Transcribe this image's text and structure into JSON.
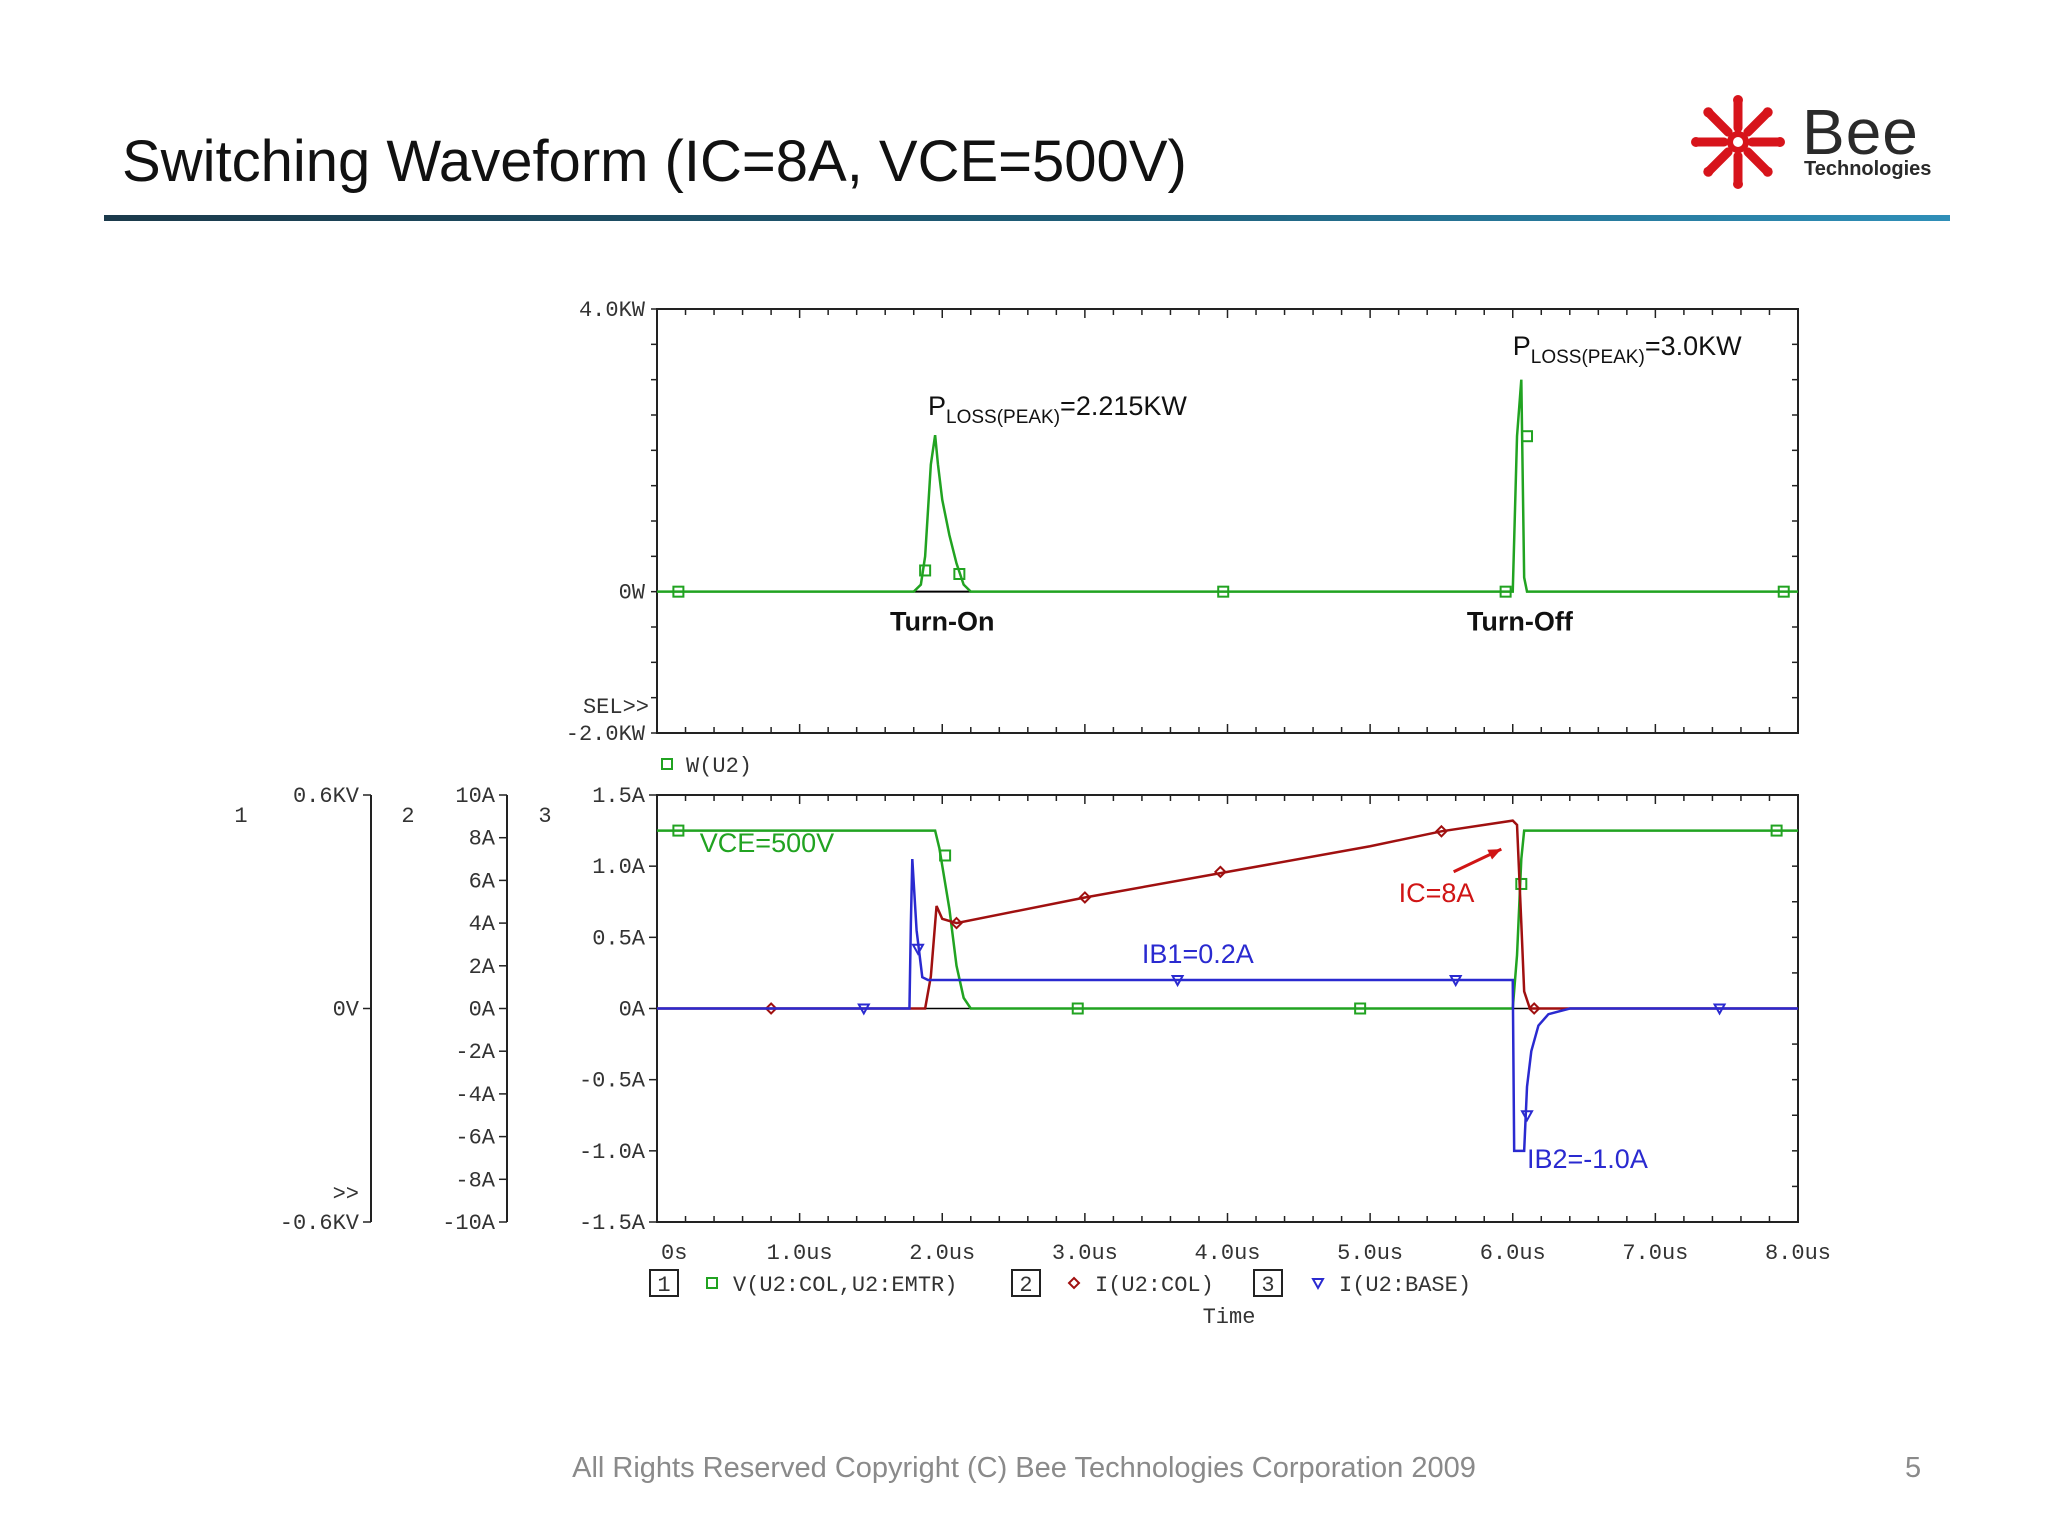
{
  "slide": {
    "title": "Switching Waveform (IC=8A, VCE=500V)",
    "footer": "All Rights Reserved Copyright (C) Bee Technologies Corporation 2009",
    "page_number": "5",
    "logo": {
      "word": "Bee",
      "sub": "Technologies",
      "colors": {
        "star": "#d7141b",
        "word": "#222222"
      }
    }
  },
  "chart_data": [
    {
      "type": "line",
      "title": "",
      "xlim": [
        0,
        8.0
      ],
      "ylim": [
        -2.0,
        4.0
      ],
      "yticks": [
        {
          "value": 4.0,
          "label": "4.0KW"
        },
        {
          "value": 0,
          "label": "0W"
        },
        {
          "value": -2.0,
          "label": "-2.0KW"
        }
      ],
      "sel_marker": "SEL>>",
      "legend": [
        {
          "marker": "square",
          "label": "W(U2)",
          "color": "#21a321"
        }
      ],
      "series": [
        {
          "name": "W(U2)",
          "color": "#21a321",
          "x": [
            0,
            1.8,
            1.85,
            1.88,
            1.92,
            1.95,
            1.97,
            2.0,
            2.05,
            2.1,
            2.15,
            2.2,
            6.0,
            6.03,
            6.06,
            6.08,
            6.1,
            8.0
          ],
          "y": [
            0,
            0,
            0.1,
            0.5,
            1.8,
            2.215,
            1.8,
            1.3,
            0.8,
            0.4,
            0.1,
            0,
            0,
            2.2,
            3.0,
            0.2,
            0,
            0
          ],
          "markers": [
            {
              "x": 0.15,
              "y": 0
            },
            {
              "x": 1.88,
              "y": 0.3
            },
            {
              "x": 2.12,
              "y": 0.25
            },
            {
              "x": 3.97,
              "y": 0
            },
            {
              "x": 5.95,
              "y": 0
            },
            {
              "x": 6.1,
              "y": 2.2
            },
            {
              "x": 7.9,
              "y": 0
            }
          ]
        }
      ],
      "annotations": [
        {
          "text": "PLOSS(PEAK)=2.215KW",
          "main": "P",
          "sub": "LOSS(PEAK)",
          "rest": "=2.215KW",
          "x": 1.9,
          "y": 2.5
        },
        {
          "text": "PLOSS(PEAK)=3.0KW",
          "main": "P",
          "sub": "LOSS(PEAK)",
          "rest": "=3.0KW",
          "x": 6.0,
          "y": 3.35
        },
        {
          "text": "Turn-On",
          "x": 2.0,
          "y": -0.55,
          "bold": true
        },
        {
          "text": "Turn-Off",
          "x": 6.05,
          "y": -0.55,
          "bold": true
        }
      ]
    },
    {
      "type": "line",
      "xlabel": "Time",
      "xlim": [
        0,
        8.0
      ],
      "xticks": [
        "0s",
        "1.0us",
        "2.0us",
        "3.0us",
        "4.0us",
        "5.0us",
        "6.0us",
        "7.0us",
        "8.0us"
      ],
      "axes": [
        {
          "id": "1",
          "ylim": [
            -0.6,
            0.6
          ],
          "ticks": [
            {
              "value": 0.6,
              "label": "0.6KV"
            },
            {
              "value": 0,
              "label": "0V"
            },
            {
              "value": -0.6,
              "label": "-0.6KV"
            }
          ],
          "extra": ">>"
        },
        {
          "id": "2",
          "ylim": [
            -10,
            10
          ],
          "ticks": [
            {
              "value": 10,
              "label": "10A"
            },
            {
              "value": 8,
              "label": "8A"
            },
            {
              "value": 6,
              "label": "6A"
            },
            {
              "value": 4,
              "label": "4A"
            },
            {
              "value": 2,
              "label": "2A"
            },
            {
              "value": 0,
              "label": "0A"
            },
            {
              "value": -2,
              "label": "-2A"
            },
            {
              "value": -4,
              "label": "-4A"
            },
            {
              "value": -6,
              "label": "-6A"
            },
            {
              "value": -8,
              "label": "-8A"
            },
            {
              "value": -10,
              "label": "-10A"
            }
          ]
        },
        {
          "id": "3",
          "ylim": [
            -1.5,
            1.5
          ],
          "ticks": [
            {
              "value": 1.5,
              "label": "1.5A"
            },
            {
              "value": 1.0,
              "label": "1.0A"
            },
            {
              "value": 0.5,
              "label": "0.5A"
            },
            {
              "value": 0,
              "label": "0A"
            },
            {
              "value": -0.5,
              "label": "-0.5A"
            },
            {
              "value": -1.0,
              "label": "-1.0A"
            },
            {
              "value": -1.5,
              "label": "-1.5A"
            }
          ]
        }
      ],
      "legend": [
        {
          "axis": "1",
          "marker": "square",
          "label": "V(U2:COL,U2:EMTR)",
          "color": "#21a321"
        },
        {
          "axis": "2",
          "marker": "diamond",
          "label": "I(U2:COL)",
          "color": "#a01010"
        },
        {
          "axis": "3",
          "marker": "triangle",
          "label": "I(U2:BASE)",
          "color": "#2a2ad0"
        }
      ],
      "series": [
        {
          "name": "V(U2:COL,U2:EMTR)",
          "axis": "1",
          "color": "#21a321",
          "x": [
            0,
            1.95,
            1.98,
            2.05,
            2.1,
            2.15,
            2.2,
            6.0,
            6.03,
            6.06,
            6.08,
            8.0
          ],
          "y": [
            0.5,
            0.5,
            0.45,
            0.28,
            0.12,
            0.03,
            0,
            0,
            0.15,
            0.42,
            0.5,
            0.5
          ],
          "markers": [
            {
              "x": 0.15,
              "y": 0.5
            },
            {
              "x": 2.02,
              "y": 0.43
            },
            {
              "x": 2.95,
              "y": 0
            },
            {
              "x": 4.93,
              "y": 0
            },
            {
              "x": 6.06,
              "y": 0.35
            },
            {
              "x": 7.85,
              "y": 0.5
            }
          ]
        },
        {
          "name": "I(U2:COL)",
          "axis": "2",
          "color": "#a01010",
          "x": [
            0,
            1.88,
            1.92,
            1.96,
            2.0,
            2.1,
            3.0,
            4.0,
            5.0,
            5.5,
            6.0,
            6.03,
            6.06,
            6.08,
            6.12,
            8.0
          ],
          "y": [
            0,
            0,
            1.5,
            4.8,
            4.2,
            4.0,
            5.2,
            6.4,
            7.6,
            8.3,
            8.8,
            8.6,
            4.0,
            0.8,
            0,
            0
          ],
          "markers": [
            {
              "x": 0.8,
              "y": 0
            },
            {
              "x": 2.1,
              "y": 4.0
            },
            {
              "x": 3.0,
              "y": 5.2
            },
            {
              "x": 3.95,
              "y": 6.4
            },
            {
              "x": 5.5,
              "y": 8.3
            },
            {
              "x": 6.15,
              "y": 0
            }
          ]
        },
        {
          "name": "I(U2:BASE)",
          "axis": "3",
          "color": "#2a2ad0",
          "x": [
            0,
            1.77,
            1.78,
            1.79,
            1.82,
            1.86,
            1.9,
            6.0,
            6.01,
            6.08,
            6.1,
            6.13,
            6.18,
            6.25,
            6.4,
            8.0
          ],
          "y": [
            0,
            0,
            0.6,
            1.05,
            0.55,
            0.22,
            0.2,
            0.2,
            -1.0,
            -1.0,
            -0.55,
            -0.3,
            -0.12,
            -0.04,
            0,
            0
          ],
          "markers": [
            {
              "x": 1.45,
              "y": 0
            },
            {
              "x": 1.83,
              "y": 0.42
            },
            {
              "x": 3.65,
              "y": 0.2
            },
            {
              "x": 5.6,
              "y": 0.2
            },
            {
              "x": 6.1,
              "y": -0.75
            },
            {
              "x": 7.45,
              "y": 0
            }
          ]
        }
      ],
      "annotations": [
        {
          "text": "VCE=500V",
          "color": "#21a321",
          "x": 0.3,
          "y": 1.1
        },
        {
          "text": "IC=8A",
          "color": "#d01515",
          "x": 5.2,
          "y": 0.75,
          "arrow_to": {
            "x": 5.92,
            "y": 1.12
          }
        },
        {
          "text": "IB1=0.2A",
          "color": "#2a2ad0",
          "x": 3.4,
          "y": 0.32
        },
        {
          "text": "IB2=-1.0A",
          "color": "#2a2ad0",
          "x": 6.1,
          "y": -1.12
        }
      ]
    }
  ]
}
